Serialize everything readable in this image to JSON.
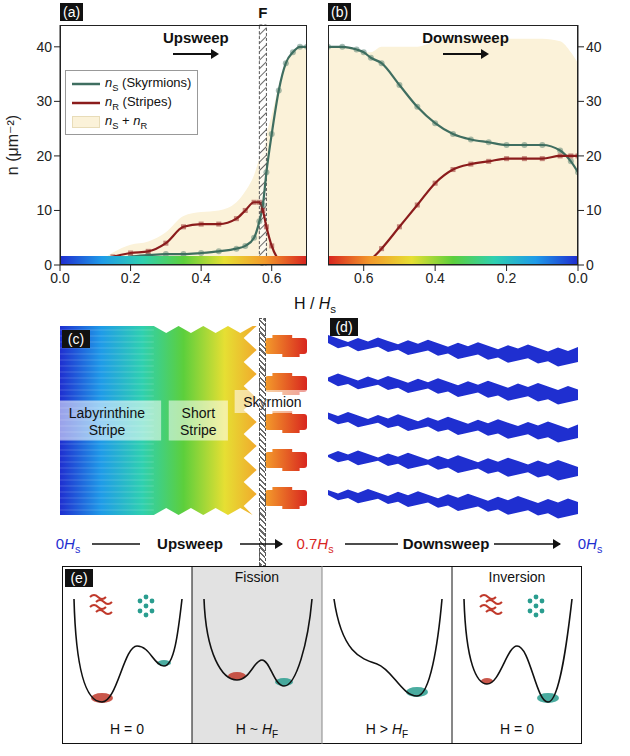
{
  "chart_data": [
    {
      "type": "line",
      "panel": "(a)",
      "title": "Upsweep",
      "ylabel": "n (μm⁻²)",
      "x": [
        0,
        0.05,
        0.1,
        0.15,
        0.2,
        0.25,
        0.3,
        0.35,
        0.4,
        0.45,
        0.5,
        0.525,
        0.55,
        0.565,
        0.575,
        0.585,
        0.6,
        0.62,
        0.64,
        0.66,
        0.68,
        0.7
      ],
      "series": [
        {
          "name": "nS (Skyrmions)",
          "color": "#3f6e60",
          "marker": "circle",
          "values": [
            0,
            0,
            0,
            0.8,
            1.5,
            1.8,
            2,
            2,
            2.2,
            2.5,
            3,
            3.5,
            5,
            8,
            11,
            17,
            24,
            32,
            37,
            39,
            40,
            40
          ]
        },
        {
          "name": "nR (Stripes)",
          "color": "#8b1c1c",
          "marker": "square",
          "values": [
            0,
            0,
            0.3,
            1.5,
            2.2,
            2.5,
            4,
            7,
            7.5,
            7.5,
            8.5,
            10,
            11.5,
            11.5,
            10,
            7,
            3.5,
            1,
            0.3,
            0,
            0,
            0
          ]
        }
      ],
      "area": {
        "name": "nS + nR",
        "color": "#fbf2d9"
      },
      "annotation": {
        "label": "F",
        "x": [
          0.565,
          0.585
        ]
      },
      "xlim": [
        0,
        0.7
      ],
      "xticks": [
        {
          "value": 0,
          "label": "0.0"
        },
        0.2,
        0.4,
        0.6
      ],
      "ylim": [
        0,
        44
      ],
      "yticks": [
        0,
        10,
        20,
        30,
        40
      ],
      "legend": "upper left"
    },
    {
      "type": "line",
      "panel": "(b)",
      "title": "Downsweep",
      "x": [
        0.7,
        0.66,
        0.62,
        0.6,
        0.58,
        0.55,
        0.5,
        0.45,
        0.4,
        0.35,
        0.3,
        0.25,
        0.2,
        0.15,
        0.1,
        0.05,
        0.02,
        0
      ],
      "series": [
        {
          "name": "nS (Skyrmions)",
          "color": "#3f6e60",
          "marker": "circle",
          "values": [
            40,
            40,
            39.5,
            39,
            38,
            37,
            33,
            29,
            26,
            24,
            23,
            22.5,
            22,
            22,
            22,
            21,
            19,
            17
          ]
        },
        {
          "name": "nR (Stripes)",
          "color": "#8b1c1c",
          "marker": "square",
          "values": [
            0,
            0,
            0,
            0,
            1,
            3,
            7,
            11,
            15,
            17.5,
            18.5,
            19,
            19.5,
            19.5,
            19.5,
            20,
            20,
            20
          ]
        }
      ],
      "area": {
        "name": "nS + nR",
        "color": "#fbf2d9"
      },
      "xlim": [
        0.7,
        0
      ],
      "xticks": [
        0.6,
        0.4,
        0.2,
        {
          "value": 0,
          "label": "0.0"
        }
      ],
      "ylim": [
        0,
        44
      ],
      "yticks": [
        0,
        10,
        20,
        30,
        40
      ]
    }
  ],
  "x_label": "H / Hs",
  "panel_c": {
    "panel": "(c)",
    "labels": [
      "Labyrinthine Stripe",
      "Short Stripe",
      "Skyrmion"
    ]
  },
  "panel_d": {
    "panel": "(d)"
  },
  "sweep_row": [
    "0Hs",
    "Upsweep",
    "0.7Hs",
    "Downsweep",
    "0Hs"
  ],
  "panel_e": {
    "panel": "(e)",
    "panels": [
      {
        "top": null,
        "bottom": "H = 0"
      },
      {
        "top": "Fission",
        "bottom": "H ~ HF"
      },
      {
        "top": null,
        "bottom": "H > HF"
      },
      {
        "top": "Inversion",
        "bottom": "H = 0"
      }
    ]
  }
}
